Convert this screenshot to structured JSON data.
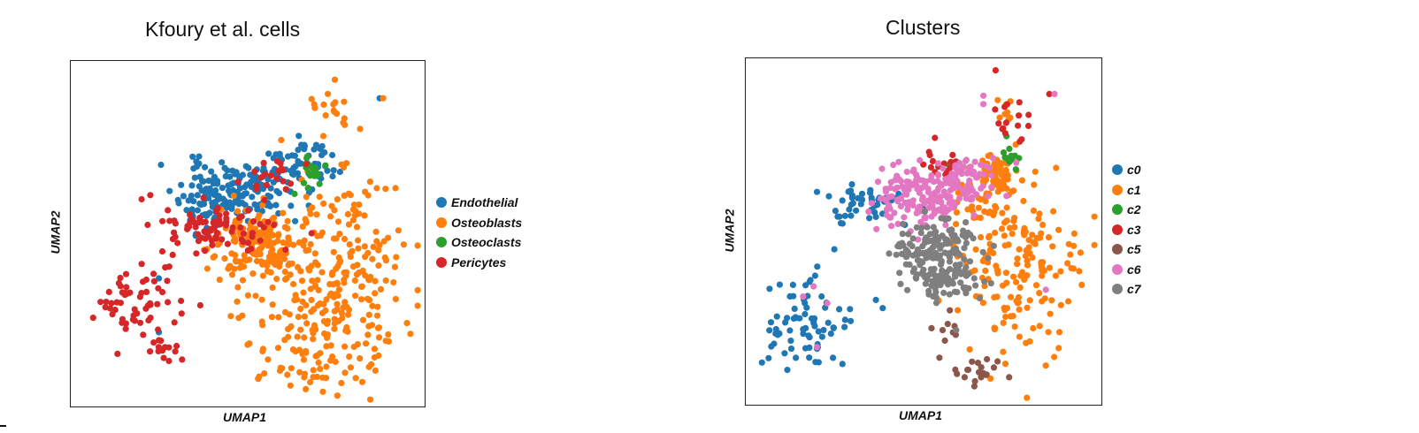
{
  "chart_data": [
    {
      "type": "scatter",
      "title": "Kfoury et al. cells",
      "xlabel": "UMAP1",
      "ylabel": "UMAP2",
      "xlim": [
        0,
        100
      ],
      "ylim": [
        0,
        100
      ],
      "grid": false,
      "legend_position": "right",
      "series": [
        {
          "name": "Endothelial",
          "color": "#1f77b4",
          "clusters": [
            {
              "center": [
                46,
                63
              ],
              "spread": [
                8,
                4.5
              ],
              "n": 150,
              "seed": 11
            },
            {
              "center": [
                65,
                71
              ],
              "spread": [
                5,
                3.5
              ],
              "n": 55,
              "seed": 12
            },
            {
              "center": [
                37,
                58
              ],
              "spread": [
                5,
                3
              ],
              "n": 40,
              "seed": 13
            }
          ],
          "points": [
            [
              88,
              90.5
            ],
            [
              24,
              37
            ],
            [
              24,
              21
            ]
          ]
        },
        {
          "name": "Osteoblasts",
          "color": "#ff7f0e",
          "clusters": [
            {
              "center": [
                53,
                47
              ],
              "spread": [
                7,
                5.5
              ],
              "n": 170,
              "seed": 21
            },
            {
              "center": [
                77,
                42
              ],
              "spread": [
                10,
                14
              ],
              "n": 190,
              "seed": 22
            },
            {
              "center": [
                64,
                25
              ],
              "spread": [
                12,
                8
              ],
              "n": 70,
              "seed": 23
            },
            {
              "center": [
                69,
                10
              ],
              "spread": [
                8,
                5
              ],
              "n": 40,
              "seed": 24
            },
            {
              "center": [
                73,
                87
              ],
              "spread": [
                3.5,
                3
              ],
              "n": 15,
              "seed": 25
            }
          ],
          "points": [
            [
              89,
              90.5
            ],
            [
              75,
              96
            ]
          ]
        },
        {
          "name": "Osteoclasts",
          "color": "#2ca02c",
          "clusters": [
            {
              "center": [
                68.5,
                68
              ],
              "spread": [
                2,
                2.5
              ],
              "n": 22,
              "seed": 31
            }
          ],
          "points": []
        },
        {
          "name": "Pericytes",
          "color": "#d62728",
          "clusters": [
            {
              "center": [
                42,
                52
              ],
              "spread": [
                8,
                3.5
              ],
              "n": 85,
              "seed": 41
            },
            {
              "center": [
                16,
                31
              ],
              "spread": [
                6,
                5
              ],
              "n": 55,
              "seed": 42
            },
            {
              "center": [
                24,
                16
              ],
              "spread": [
                3,
                2.5
              ],
              "n": 15,
              "seed": 43
            },
            {
              "center": [
                58,
                67
              ],
              "spread": [
                6,
                3
              ],
              "n": 20,
              "seed": 44
            }
          ],
          "points": [
            [
              19,
              60.5
            ],
            [
              28,
              44
            ],
            [
              27,
              40.5
            ],
            [
              36,
              29
            ],
            [
              25,
              45
            ]
          ]
        }
      ]
    },
    {
      "type": "scatter",
      "title": "Clusters",
      "xlabel": "UMAP1",
      "ylabel": "UMAP2",
      "xlim": [
        0,
        100
      ],
      "ylim": [
        0,
        100
      ],
      "grid": false,
      "legend_position": "right",
      "series": [
        {
          "name": "c0",
          "color": "#1f77b4",
          "clusters": [
            {
              "center": [
                32,
                58
              ],
              "spread": [
                6,
                3
              ],
              "n": 45,
              "seed": 51
            },
            {
              "center": [
                18,
                23
              ],
              "spread": [
                6,
                7
              ],
              "n": 75,
              "seed": 52
            }
          ],
          "points": [
            [
              19,
              62
            ],
            [
              24,
              45
            ],
            [
              36,
              30
            ]
          ]
        },
        {
          "name": "c1",
          "color": "#ff7f0e",
          "clusters": [
            {
              "center": [
                70,
                68
              ],
              "spread": [
                3.5,
                3.5
              ],
              "n": 70,
              "seed": 61
            },
            {
              "center": [
                77,
                40
              ],
              "spread": [
                9,
                14
              ],
              "n": 170,
              "seed": 62
            },
            {
              "center": [
                62,
                57
              ],
              "spread": [
                4,
                3
              ],
              "n": 20,
              "seed": 63
            },
            {
              "center": [
                74,
                86
              ],
              "spread": [
                1.5,
                3
              ],
              "n": 8,
              "seed": 64
            }
          ],
          "points": [
            [
              93,
              46
            ],
            [
              95,
              44
            ]
          ]
        },
        {
          "name": "c2",
          "color": "#2ca02c",
          "clusters": [
            {
              "center": [
                74.5,
                74
              ],
              "spread": [
                1.2,
                3
              ],
              "n": 12,
              "seed": 71
            }
          ],
          "points": [
            [
              57,
              70
            ]
          ]
        },
        {
          "name": "c3",
          "color": "#d62728",
          "clusters": [
            {
              "center": [
                74,
                84
              ],
              "spread": [
                3,
                3.5
              ],
              "n": 15,
              "seed": 81
            },
            {
              "center": [
                55,
                70
              ],
              "spread": [
                4,
                2.5
              ],
              "n": 15,
              "seed": 82
            }
          ],
          "points": [
            [
              70.5,
              98
            ],
            [
              86,
              91
            ],
            [
              53,
              78
            ]
          ]
        },
        {
          "name": "c5",
          "color": "#8c564b",
          "clusters": [
            {
              "center": [
                56,
                21
              ],
              "spread": [
                2.5,
                3
              ],
              "n": 8,
              "seed": 91
            },
            {
              "center": [
                65,
                9
              ],
              "spread": [
                6,
                2.5
              ],
              "n": 20,
              "seed": 92
            }
          ],
          "points": []
        },
        {
          "name": "c6",
          "color": "#e377c2",
          "clusters": [
            {
              "center": [
                51,
                61
              ],
              "spread": [
                7,
                4.5
              ],
              "n": 170,
              "seed": 101
            },
            {
              "center": [
                63,
                67
              ],
              "spread": [
                5,
                3
              ],
              "n": 45,
              "seed": 102
            }
          ],
          "points": [
            [
              67,
              90.5
            ],
            [
              87.5,
              91
            ],
            [
              18,
              34
            ],
            [
              15,
              31
            ],
            [
              22,
              29
            ],
            [
              19,
              16
            ],
            [
              85,
              33
            ],
            [
              67,
              88
            ],
            [
              41,
              70
            ]
          ]
        },
        {
          "name": "c7",
          "color": "#7f7f7f",
          "clusters": [
            {
              "center": [
                53,
                44
              ],
              "spread": [
                6,
                5.5
              ],
              "n": 180,
              "seed": 111
            },
            {
              "center": [
                57,
                36
              ],
              "spread": [
                5,
                3.5
              ],
              "n": 30,
              "seed": 112
            }
          ],
          "points": [
            [
              70,
              46
            ]
          ]
        }
      ]
    }
  ]
}
